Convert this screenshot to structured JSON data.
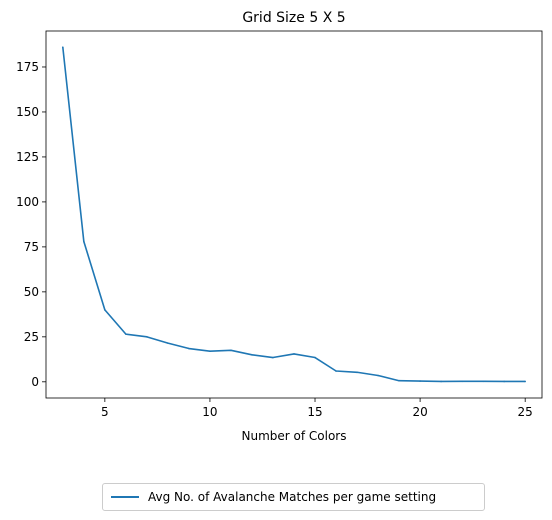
{
  "chart_data": {
    "type": "line",
    "title": "Grid Size 5 X 5",
    "xlabel": "Number of Colors",
    "ylabel": "",
    "xlim": [
      2.2,
      25.8
    ],
    "ylim": [
      -9,
      195
    ],
    "xticks": [
      5,
      10,
      15,
      20,
      25
    ],
    "yticks": [
      0,
      25,
      50,
      75,
      100,
      125,
      150,
      175
    ],
    "grid": false,
    "legend_position": "bottom-center",
    "series": [
      {
        "name": "Avg No. of Avalanche Matches per game setting",
        "color": "#1f77b4",
        "x": [
          3,
          4,
          5,
          6,
          7,
          8,
          9,
          10,
          11,
          12,
          13,
          14,
          15,
          16,
          17,
          18,
          19,
          20,
          21,
          22,
          23,
          24,
          25
        ],
        "y": [
          186,
          78,
          40,
          26.5,
          25,
          21.5,
          18.5,
          17,
          17.5,
          15,
          13.5,
          15.5,
          13.5,
          6,
          5.3,
          3.5,
          0.6,
          0.4,
          0.2,
          0.3,
          0.3,
          0.2,
          0.2
        ]
      }
    ]
  }
}
